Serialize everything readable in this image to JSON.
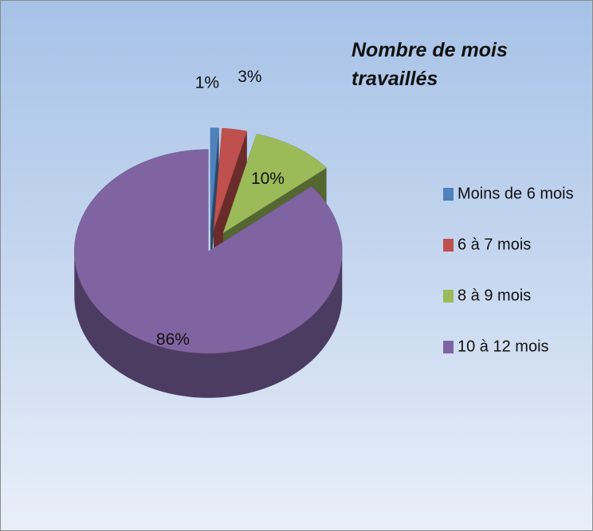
{
  "chart_data": {
    "type": "pie",
    "title": "Nombre de mois travaillés",
    "categories": [
      "Moins de 6 mois",
      "6 à 7 mois",
      "8 à 9 mois",
      "10 à 12 mois"
    ],
    "values": [
      1,
      3,
      10,
      86
    ],
    "value_labels": [
      "1%",
      "3%",
      "10%",
      "86%"
    ],
    "colors": [
      "#4f81bd",
      "#c0504d",
      "#9bbb59",
      "#8064a2"
    ],
    "legend": "right"
  }
}
